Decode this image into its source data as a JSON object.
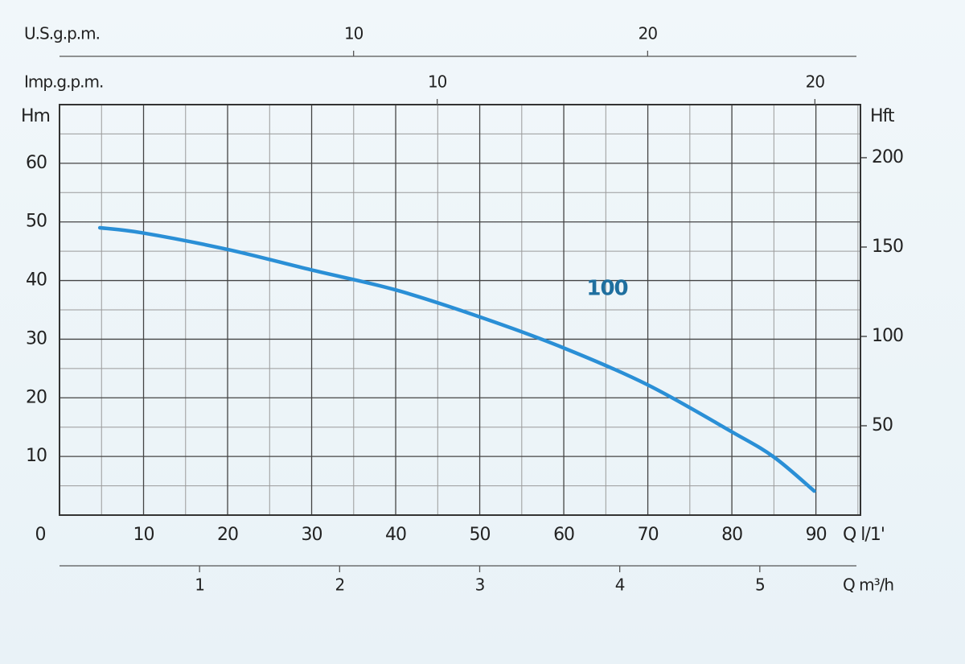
{
  "chart_data": {
    "type": "line",
    "x_label": "Q l/1'",
    "y_label": "Hm",
    "y2_label": "Hft",
    "x": [
      4.8,
      10,
      20,
      30,
      40,
      50,
      60,
      70,
      80,
      85,
      89.8
    ],
    "series": [
      {
        "name": "100",
        "color": "#2a8fd6",
        "label_color": "#1f6f9f",
        "values": [
          49.0,
          48.1,
          45.3,
          41.8,
          38.4,
          33.8,
          28.5,
          22.2,
          14.2,
          9.9,
          4.1
        ]
      }
    ],
    "xlim": [
      0,
      95.3
    ],
    "xticks": [
      0,
      10,
      20,
      30,
      40,
      50,
      60,
      70,
      80,
      90
    ],
    "xminorticks": [
      5,
      15,
      25,
      35,
      45,
      55,
      65,
      75,
      85,
      95
    ],
    "ylim": [
      0,
      70
    ],
    "yticks": [
      10,
      20,
      30,
      40,
      50,
      60
    ],
    "yminorticks": [
      5,
      15,
      25,
      35,
      45,
      55,
      65
    ],
    "y2lim": [
      0,
      229.7
    ],
    "y2ticks": [
      50,
      100,
      150,
      200
    ],
    "grid": true,
    "extra_x_axes": [
      {
        "label": "U.S.g.p.m.",
        "position": "top",
        "xlim": [
          0,
          27.1
        ],
        "xticks": [
          10,
          20
        ]
      },
      {
        "label": "Imp.g.p.m.",
        "position": "top-inner",
        "xlim": [
          0,
          21.1
        ],
        "xticks": [
          10,
          20
        ]
      },
      {
        "label": "Q m³/h",
        "position": "bottom",
        "xlim": [
          0,
          5.69
        ],
        "xticks": [
          1,
          2,
          3,
          4,
          5
        ]
      }
    ]
  }
}
